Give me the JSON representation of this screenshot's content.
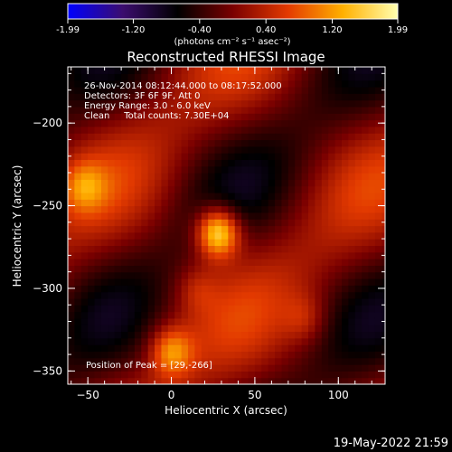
{
  "colorbar": {
    "tick_labels": [
      "-1.99",
      "-1.20",
      "-0.40",
      "0.40",
      "1.20",
      "1.99"
    ],
    "unit_label": "(photons cm⁻² s⁻¹ asec⁻²)",
    "range": [
      -1.99,
      1.99
    ],
    "colormap": [
      "#0000ff",
      "#3b0d6e",
      "#000000",
      "#7a0000",
      "#e33a00",
      "#ffb000",
      "#ffffb0"
    ]
  },
  "chart_data": {
    "type": "heatmap",
    "title": "Reconstructed RHESSI Image",
    "xlabel": "Heliocentric X (arcsec)",
    "ylabel": "Heliocentric Y (arcsec)",
    "xlim": [
      -62,
      128
    ],
    "ylim": [
      -358,
      -166
    ],
    "xticks": [
      -50,
      0,
      50,
      100
    ],
    "yticks": [
      -350,
      -300,
      -250,
      -200
    ],
    "xtick_labels": [
      "−50",
      "0",
      "50",
      "100"
    ],
    "ytick_labels": [
      "−350",
      "−300",
      "−250",
      "−200"
    ],
    "peak": [
      29,
      -266
    ],
    "blobs": [
      {
        "x": 28,
        "y": -266,
        "value": 1.99
      },
      {
        "x": 0,
        "y": -338,
        "value": 1.1
      },
      {
        "x": -52,
        "y": -238,
        "value": 0.75
      },
      {
        "x": 80,
        "y": -318,
        "value": 0.45
      },
      {
        "x": 15,
        "y": -300,
        "value": 0.4
      }
    ],
    "annotations": [
      "26-Nov-2014 08:12:44.000 to 08:17:52.000",
      "Detectors: 3F 6F 9F, Att 0",
      "Energy Range: 3.0 - 6.0 keV",
      "Clean     Total counts: 7.30E+04"
    ],
    "peak_label": "Position of Peak = [29,-266]"
  },
  "footer": {
    "timestamp": "19-May-2022 21:59"
  }
}
